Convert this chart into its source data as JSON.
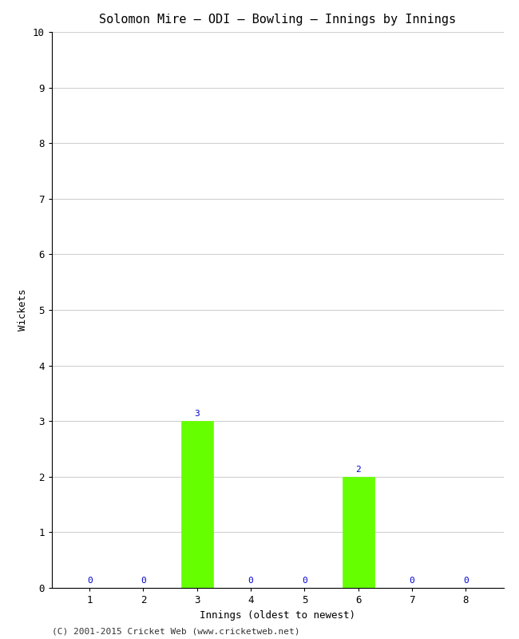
{
  "title": "Solomon Mire – ODI – Bowling – Innings by Innings",
  "xlabel": "Innings (oldest to newest)",
  "ylabel": "Wickets",
  "categories": [
    "1",
    "2",
    "3",
    "4",
    "5",
    "6",
    "7",
    "8"
  ],
  "values": [
    0,
    0,
    3,
    0,
    0,
    2,
    0,
    0
  ],
  "bar_color": "#66ff00",
  "bar_edge_color": "#66ff00",
  "ylim": [
    0,
    10
  ],
  "yticks": [
    0,
    1,
    2,
    3,
    4,
    5,
    6,
    7,
    8,
    9,
    10
  ],
  "label_color": "#0000cc",
  "label_fontsize": 8,
  "background_color": "#ffffff",
  "plot_bg_color": "#ffffff",
  "title_fontsize": 11,
  "axis_label_fontsize": 9,
  "tick_fontsize": 9,
  "footer": "(C) 2001-2015 Cricket Web (www.cricketweb.net)",
  "footer_fontsize": 8,
  "grid_color": "#d0d0d0",
  "spine_color": "#000000"
}
